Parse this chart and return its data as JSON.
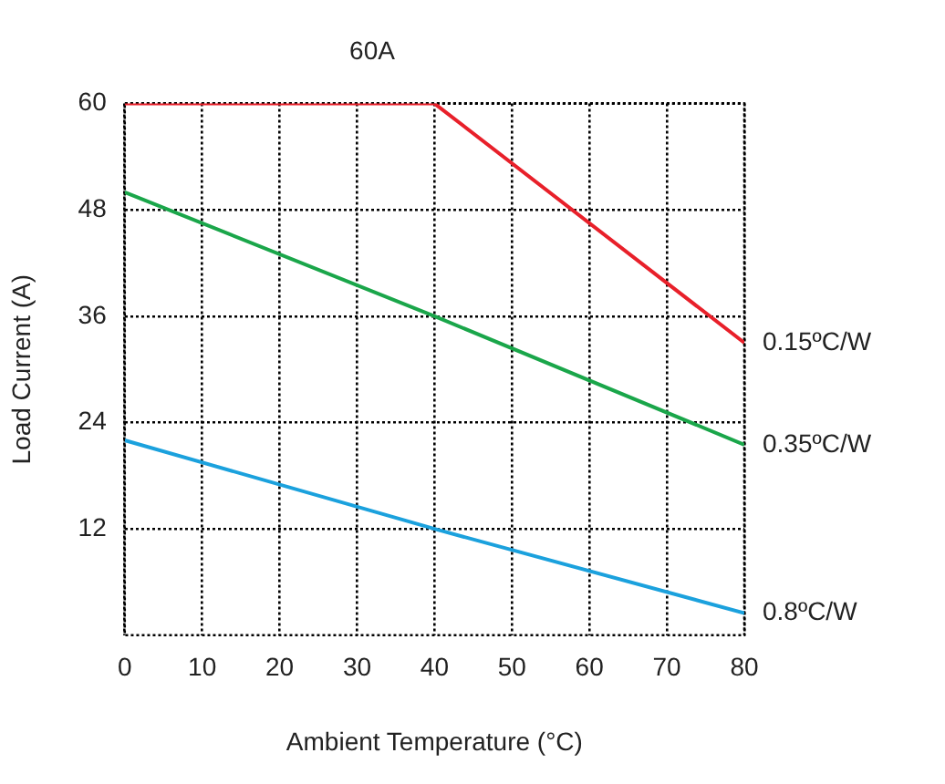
{
  "chart_data": {
    "type": "line",
    "title": "60A",
    "xlabel": "Ambient Temperature (°C)",
    "ylabel": "Load Current (A)",
    "x": [
      0,
      40,
      80
    ],
    "series": [
      {
        "name": "0.15ºC/W",
        "color": "#e8202a",
        "values": [
          60,
          60,
          33
        ]
      },
      {
        "name": "0.35ºC/W",
        "color": "#1aa64a",
        "values": [
          50,
          36,
          21.5
        ]
      },
      {
        "name": "0.8ºC/W",
        "color": "#1ba1dd",
        "values": [
          22,
          12,
          2.5
        ]
      }
    ],
    "xlim": [
      0,
      80
    ],
    "xticks": [
      0,
      10,
      20,
      30,
      40,
      50,
      60,
      70,
      80
    ],
    "ylim": [
      0,
      60
    ],
    "yticks": [
      12,
      24,
      36,
      48,
      60
    ],
    "grid": true,
    "legend": false,
    "marker": "none",
    "line_style": "solid"
  }
}
